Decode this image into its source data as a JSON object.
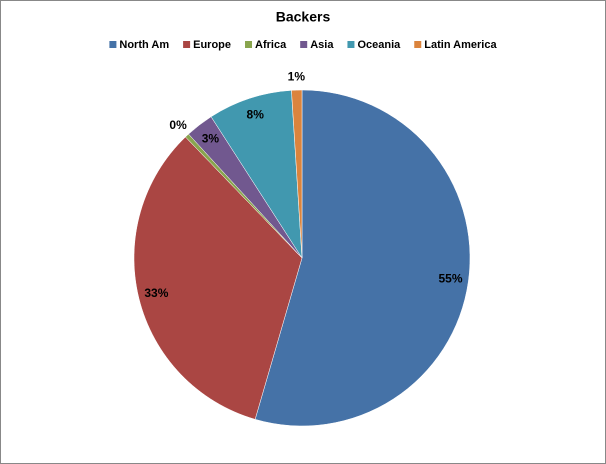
{
  "chart_data": {
    "type": "pie",
    "title": "Backers",
    "categories": [
      "North Am",
      "Europe",
      "Africa",
      "Asia",
      "Oceania",
      "Latin America"
    ],
    "values": [
      54.5,
      33.3,
      0.4,
      2.7,
      8.1,
      1.0
    ],
    "value_labels": [
      "55%",
      "33%",
      "0%",
      "3%",
      "8%",
      "1%"
    ],
    "colors": [
      "#4572A7",
      "#AA4643",
      "#89A54E",
      "#71588F",
      "#4198AF",
      "#DB843D"
    ],
    "legend": "top"
  }
}
